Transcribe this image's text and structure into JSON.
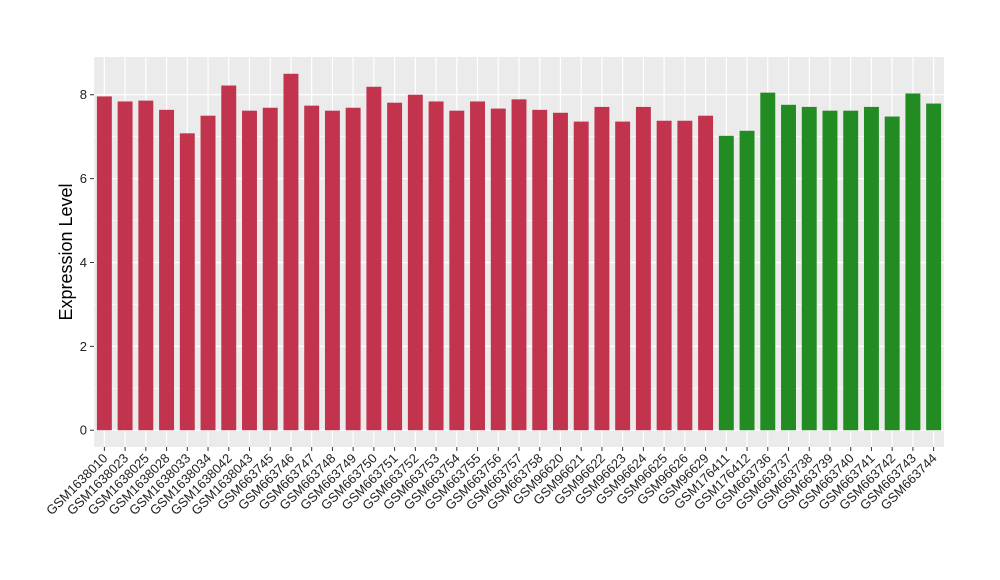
{
  "chart_data": {
    "type": "bar",
    "title": "",
    "xlabel": "",
    "ylabel": "Expression Level",
    "ylim": [
      -0.4,
      8.9
    ],
    "yticks": [
      0,
      2,
      4,
      6,
      8
    ],
    "grid": true,
    "legend": "none",
    "colors": {
      "group1": "#C2334D",
      "group2": "#228B22",
      "panel": "#EBEBEB",
      "gridline": "#FFFFFF"
    },
    "categories": [
      "GSM1638010",
      "GSM1638023",
      "GSM1638025",
      "GSM1638028",
      "GSM1638033",
      "GSM1638034",
      "GSM1638042",
      "GSM1638043",
      "GSM663745",
      "GSM663746",
      "GSM663747",
      "GSM663748",
      "GSM663749",
      "GSM663750",
      "GSM663751",
      "GSM663752",
      "GSM663753",
      "GSM663754",
      "GSM663755",
      "GSM663756",
      "GSM663757",
      "GSM663758",
      "GSM96620",
      "GSM96621",
      "GSM96622",
      "GSM96623",
      "GSM96624",
      "GSM96625",
      "GSM96626",
      "GSM96629",
      "GSM176411",
      "GSM176412",
      "GSM663736",
      "GSM663737",
      "GSM663738",
      "GSM663739",
      "GSM663740",
      "GSM663741",
      "GSM663742",
      "GSM663743",
      "GSM663744"
    ],
    "values": [
      7.96,
      7.84,
      7.86,
      7.64,
      7.08,
      7.5,
      8.22,
      7.62,
      7.69,
      8.5,
      7.74,
      7.62,
      7.69,
      8.19,
      7.81,
      8.0,
      7.84,
      7.62,
      7.84,
      7.67,
      7.89,
      7.64,
      7.57,
      7.36,
      7.71,
      7.36,
      7.71,
      7.38,
      7.38,
      7.5,
      7.02,
      7.14,
      8.05,
      7.76,
      7.71,
      7.62,
      7.62,
      7.71,
      7.48,
      8.03,
      7.79
    ],
    "groups": [
      "group1",
      "group1",
      "group1",
      "group1",
      "group1",
      "group1",
      "group1",
      "group1",
      "group1",
      "group1",
      "group1",
      "group1",
      "group1",
      "group1",
      "group1",
      "group1",
      "group1",
      "group1",
      "group1",
      "group1",
      "group1",
      "group1",
      "group1",
      "group1",
      "group1",
      "group1",
      "group1",
      "group1",
      "group1",
      "group1",
      "group2",
      "group2",
      "group2",
      "group2",
      "group2",
      "group2",
      "group2",
      "group2",
      "group2",
      "group2",
      "group2"
    ]
  }
}
